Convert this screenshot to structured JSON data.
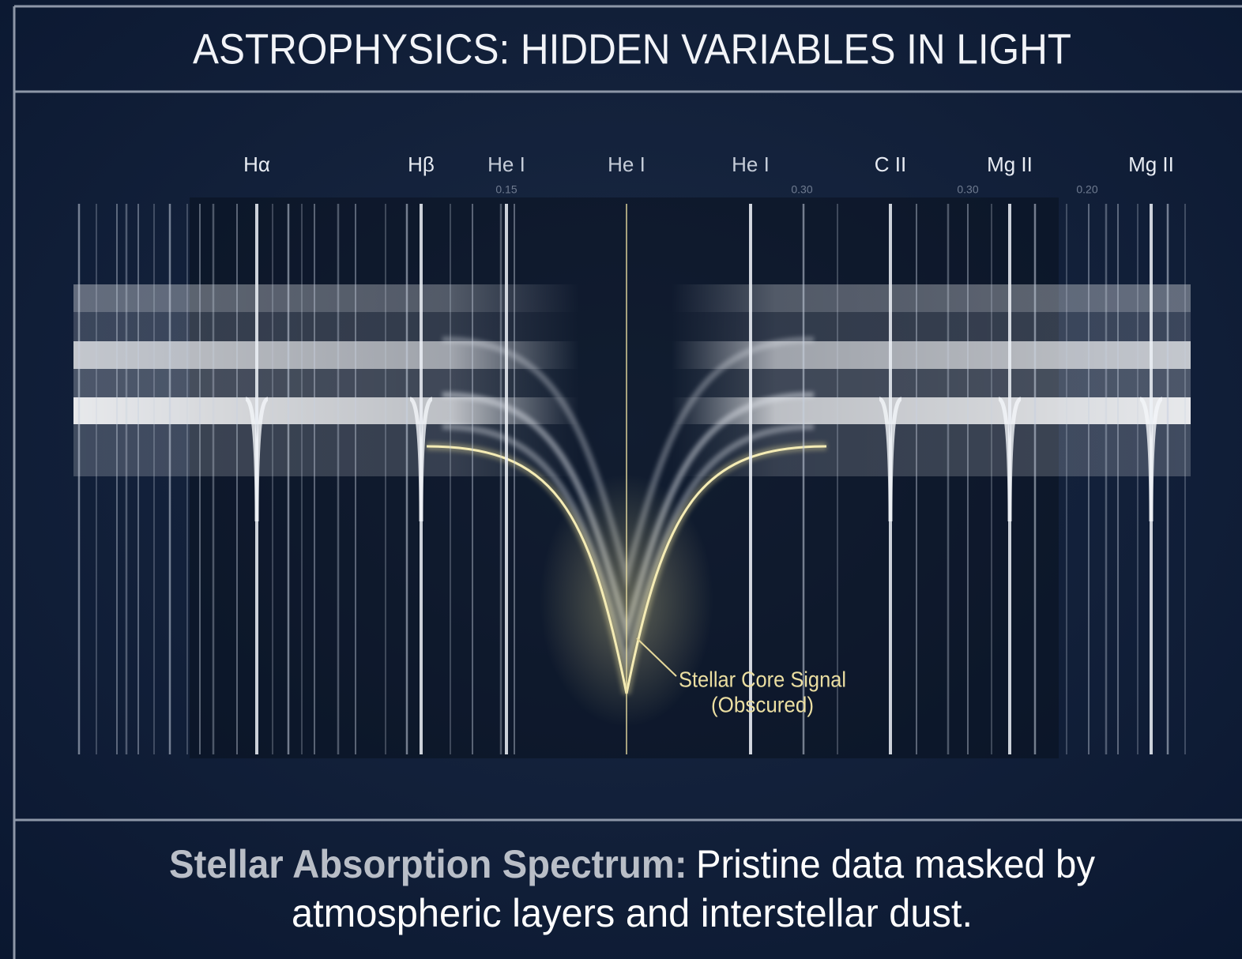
{
  "header": {
    "title": "ASTROPHYSICS: HIDDEN VARIABLES IN LIGHT"
  },
  "spectrum": {
    "lines": [
      {
        "label": "Hα"
      },
      {
        "label": "Hβ"
      },
      {
        "label": "He I"
      },
      {
        "label": "He I"
      },
      {
        "label": "He I"
      },
      {
        "label": "C II"
      },
      {
        "label": "Mg II"
      },
      {
        "label": "Mg II"
      }
    ],
    "faint_labels": [
      "0.15",
      "0.30",
      "0.30",
      "0.20"
    ],
    "annotation": [
      "Stellar Core Signal",
      "(Obscured)"
    ]
  },
  "caption": {
    "lead": "Stellar Absorption Spectrum:",
    "body": [
      "Pristine data masked by",
      "atmospheric layers and interstellar dust."
    ]
  }
}
